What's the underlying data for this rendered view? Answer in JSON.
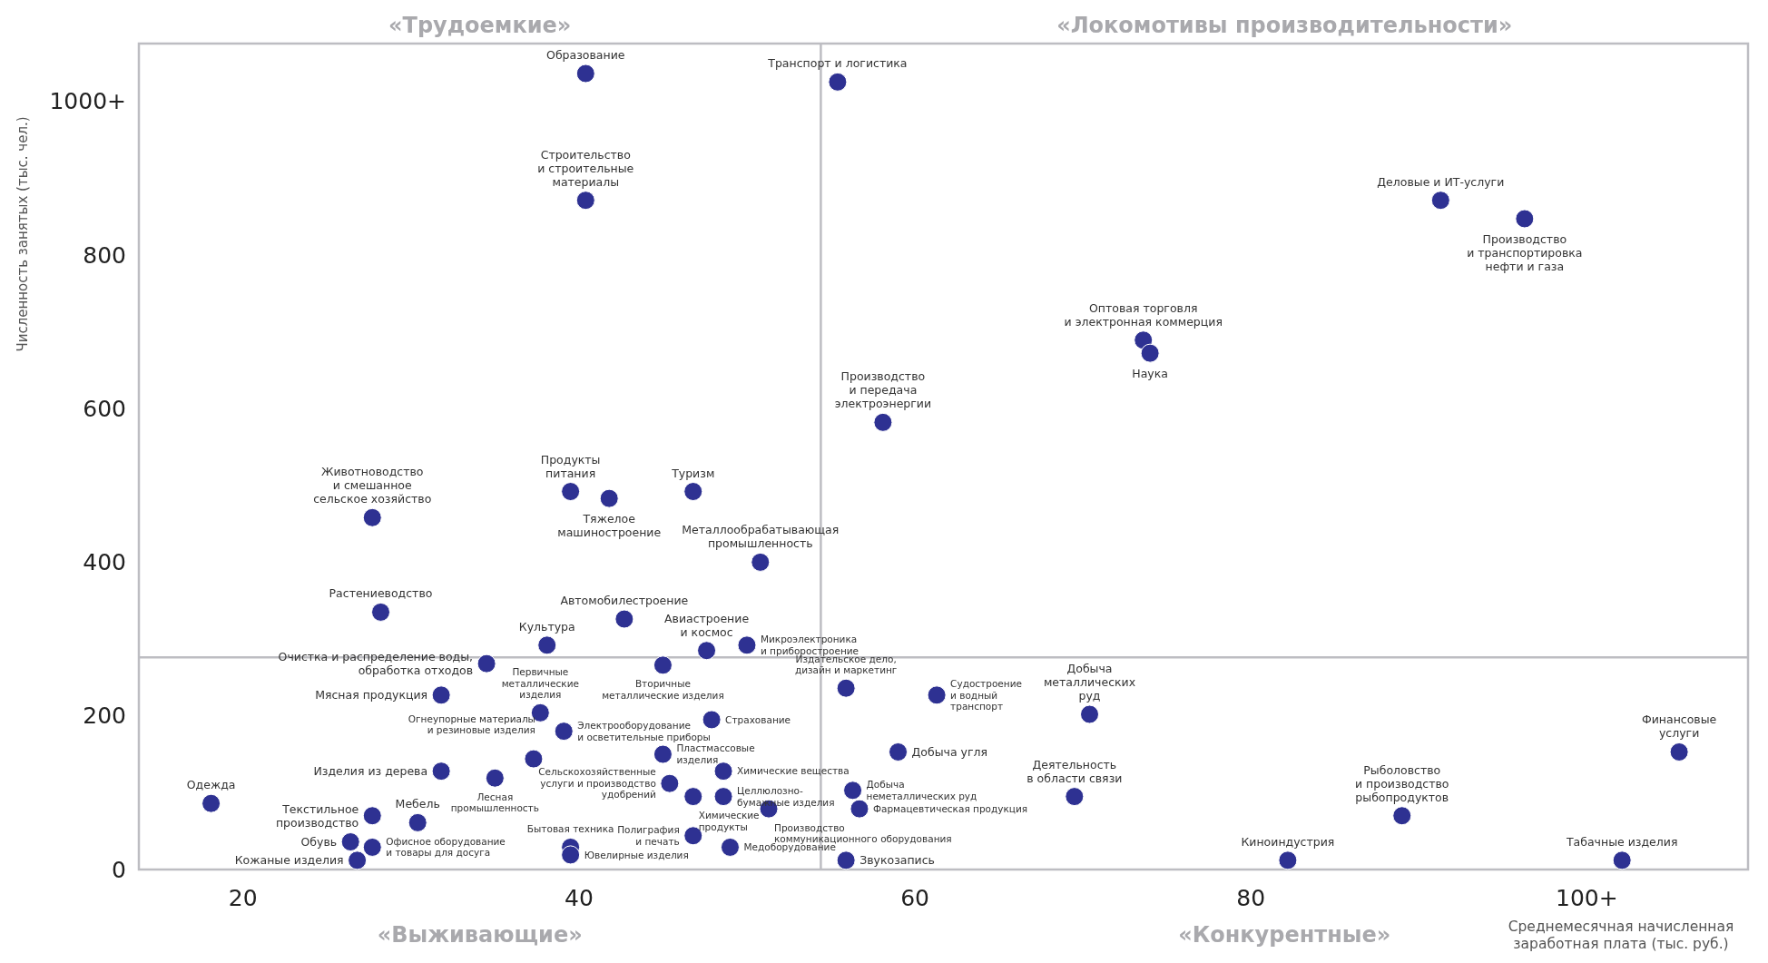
{
  "chart_data": {
    "type": "scatter",
    "ylabel": "Численность занятых (тыс. чел.)",
    "xlabel": "Среднемесячная начисленная\nзаработная плата (тыс. руб.)",
    "color": "#2e3192",
    "marker": "circle",
    "grid": false,
    "xlim": [
      13.8,
      109.6
    ],
    "ylim": [
      0,
      1075
    ],
    "xticks": [
      20,
      40,
      60,
      80,
      {
        "value": 100,
        "label": "100+"
      }
    ],
    "yticks": [
      0,
      200,
      400,
      600,
      800,
      {
        "value": 1000,
        "label": "1000+"
      }
    ],
    "ref_lines": [
      {
        "axis": "x",
        "value": 54.4,
        "color": "#bdbdc2"
      },
      {
        "axis": "y",
        "value": 276,
        "color": "#bdbdc2"
      }
    ],
    "x": [
      40.4,
      55.4,
      40.4,
      91.3,
      96.3,
      73.6,
      74.0,
      58.1,
      27.7,
      39.5,
      41.8,
      46.8,
      50.8,
      28.2,
      42.7,
      38.1,
      47.6,
      50.0,
      34.5,
      45.0,
      55.9,
      61.3,
      31.8,
      37.7,
      39.1,
      47.9,
      70.4,
      37.3,
      45.0,
      59.0,
      105.5,
      31.8,
      35.0,
      45.4,
      48.6,
      46.8,
      48.6,
      56.3,
      69.5,
      18.1,
      51.3,
      56.7,
      27.7,
      89.0,
      30.4,
      46.8,
      26.4,
      27.7,
      39.5,
      49.0,
      39.5,
      26.8,
      55.9,
      82.2,
      102.1
    ],
    "values": [
      1036,
      1025,
      871,
      871,
      847,
      689,
      672,
      582,
      458,
      492,
      483,
      492,
      400,
      335,
      326,
      292,
      285,
      292,
      268,
      266,
      236,
      227,
      227,
      204,
      180,
      195,
      202,
      144,
      150,
      153,
      153,
      128,
      119,
      112,
      128,
      95,
      95,
      103,
      95,
      86,
      79,
      79,
      70,
      70,
      61,
      44,
      36,
      29,
      29,
      29,
      19,
      12,
      12,
      12,
      12
    ],
    "annotations": [
      {
        "text": "Образование",
        "x": 40.4,
        "y": 1036
      },
      {
        "text": "Транспорт и логистика",
        "x": 55.4,
        "y": 1025
      },
      {
        "text": "Строительство\nи строительные\nматериалы",
        "x": 40.4,
        "y": 871
      },
      {
        "text": "Деловые и ИТ-услуги",
        "x": 91.3,
        "y": 871
      },
      {
        "text": "Производство\nи транспортировка\nнефти и газа",
        "x": 96.3,
        "y": 847
      },
      {
        "text": "Оптовая торговля\nи электронная коммерция",
        "x": 73.6,
        "y": 689
      },
      {
        "text": "Наука",
        "x": 74.0,
        "y": 672
      },
      {
        "text": "Производство\nи передача\nэлектроэнергии",
        "x": 58.1,
        "y": 582
      },
      {
        "text": "Животноводство\nи смешанное\nсельское хозяйство",
        "x": 27.7,
        "y": 458
      },
      {
        "text": "Продукты\nпитания",
        "x": 39.5,
        "y": 492
      },
      {
        "text": "Тяжелое\nмашиностроение",
        "x": 41.8,
        "y": 483
      },
      {
        "text": "Туризм",
        "x": 46.8,
        "y": 492
      },
      {
        "text": "Металлообрабатывающая\nпромышленность",
        "x": 50.8,
        "y": 400
      },
      {
        "text": "Растениеводство",
        "x": 28.2,
        "y": 335
      },
      {
        "text": "Автомобилестроение",
        "x": 42.7,
        "y": 326
      },
      {
        "text": "Культура",
        "x": 38.1,
        "y": 292
      },
      {
        "text": "Авиастроение\nи космос",
        "x": 47.6,
        "y": 285
      },
      {
        "text": "Микроэлектроника\nи приборостроение",
        "x": 50.0,
        "y": 292
      },
      {
        "text": "Очистка и распределение воды,\nобработка отходов",
        "x": 34.5,
        "y": 268
      },
      {
        "text": "Вторичные\nметаллические изделия",
        "x": 45.0,
        "y": 266
      },
      {
        "text": "Издательское дело,\nдизайн и маркетинг",
        "x": 55.9,
        "y": 236
      },
      {
        "text": "Судостроение\nи водный\nтранспорт",
        "x": 61.3,
        "y": 227
      },
      {
        "text": "Мясная продукция",
        "x": 31.8,
        "y": 227
      },
      {
        "text": "Первичные\nметаллические\nизделия",
        "x": 37.7,
        "y": 204
      },
      {
        "text": "Электрооборудование\nи осветительные приборы",
        "x": 39.1,
        "y": 180
      },
      {
        "text": "Страхование",
        "x": 47.9,
        "y": 195
      },
      {
        "text": "Добыча\nметаллических\nруд",
        "x": 70.4,
        "y": 202
      },
      {
        "text": "Огнеупорные материалы\nи резиновые изделия",
        "x": 37.3,
        "y": 144
      },
      {
        "text": "Пластмассовые\nизделия",
        "x": 45.0,
        "y": 150
      },
      {
        "text": "Добыча угля",
        "x": 59.0,
        "y": 153
      },
      {
        "text": "Финансовые\nуслуги",
        "x": 105.5,
        "y": 153
      },
      {
        "text": "Изделия из дерева",
        "x": 31.8,
        "y": 128
      },
      {
        "text": "Лесная\nпромышленность",
        "x": 35.0,
        "y": 119
      },
      {
        "text": "Сельскохозяйственные\nуслуги и производство\nудобрений",
        "x": 45.4,
        "y": 112
      },
      {
        "text": "Химические вещества",
        "x": 48.6,
        "y": 128
      },
      {
        "text": "Химические\nпродукты",
        "x": 46.8,
        "y": 95
      },
      {
        "text": "Целлюлозно-\nбумажные изделия",
        "x": 48.6,
        "y": 95
      },
      {
        "text": "Добыча\nнеметаллических руд",
        "x": 56.3,
        "y": 103
      },
      {
        "text": "Деятельность\nв области связи",
        "x": 69.5,
        "y": 95
      },
      {
        "text": "Одежда",
        "x": 18.1,
        "y": 86
      },
      {
        "text": "Производство\nкоммуникационного оборудования",
        "x": 51.3,
        "y": 79
      },
      {
        "text": "Фармацевтическая продукция",
        "x": 56.7,
        "y": 79
      },
      {
        "text": "Текстильное\nпроизводство",
        "x": 27.7,
        "y": 70
      },
      {
        "text": "Рыболовство\nи производство\nрыбопродуктов",
        "x": 89.0,
        "y": 70
      },
      {
        "text": "Мебель",
        "x": 30.4,
        "y": 61
      },
      {
        "text": "Полиграфия\nи печать",
        "x": 46.8,
        "y": 44
      },
      {
        "text": "Обувь",
        "x": 26.4,
        "y": 36
      },
      {
        "text": "Офисное оборудование\nи товары для досуга",
        "x": 27.7,
        "y": 29
      },
      {
        "text": "Бытовая техника",
        "x": 39.5,
        "y": 29
      },
      {
        "text": "Медоборудование",
        "x": 49.0,
        "y": 29
      },
      {
        "text": "Ювелирные изделия",
        "x": 39.5,
        "y": 19
      },
      {
        "text": "Кожаные изделия",
        "x": 26.8,
        "y": 12
      },
      {
        "text": "Звукозапись",
        "x": 55.9,
        "y": 12
      },
      {
        "text": "Киноиндустрия",
        "x": 82.2,
        "y": 12
      },
      {
        "text": "Табачные изделия",
        "x": 102.1,
        "y": 12
      },
      "«Трудоемкие»",
      "«Локомотивы производительности»",
      "«Выживающие»",
      "«Конкурентные»"
    ]
  }
}
